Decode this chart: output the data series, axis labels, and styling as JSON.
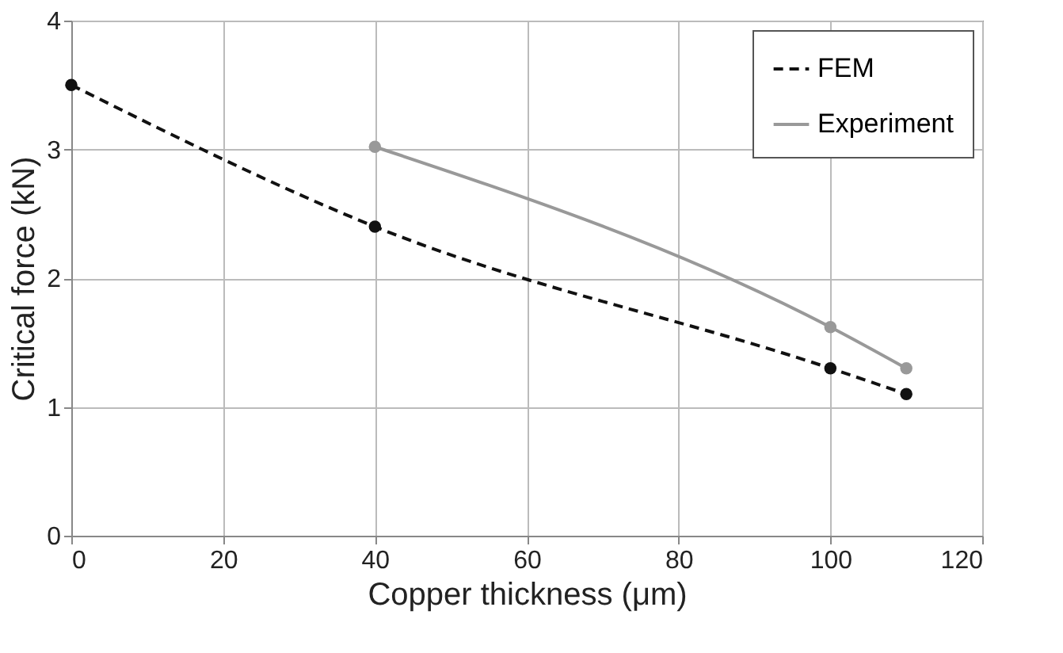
{
  "chart_data": {
    "type": "line",
    "xlabel": "Copper thickness (μm)",
    "ylabel": "Critical force (kN)",
    "xlim": [
      0,
      120
    ],
    "xticks": [
      0,
      20,
      40,
      60,
      80,
      100,
      120
    ],
    "ylim": [
      0,
      4
    ],
    "yticks": [
      0,
      1,
      2,
      3,
      4
    ],
    "grid": true,
    "legend": "top right",
    "marker": "circle",
    "series": [
      {
        "name": "FEM",
        "color": "#111111",
        "line_style": "dashed",
        "x": [
          0,
          40,
          100,
          110
        ],
        "values": [
          3.5,
          2.4,
          1.3,
          1.1
        ]
      },
      {
        "name": "Experiment",
        "color": "#999999",
        "line_style": "solid",
        "x": [
          40,
          100,
          110
        ],
        "values": [
          3.02,
          1.62,
          1.3
        ]
      }
    ]
  }
}
